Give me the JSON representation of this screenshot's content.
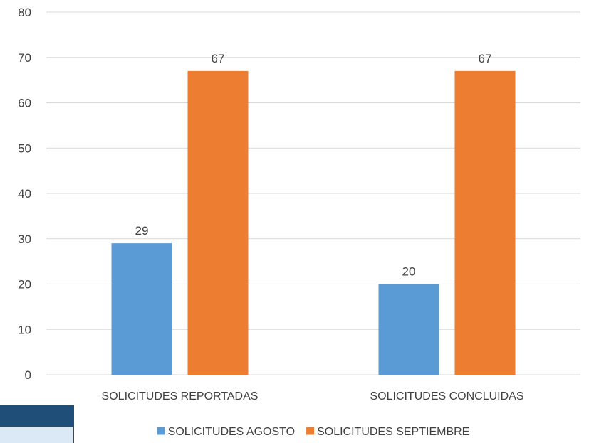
{
  "chart_data": {
    "type": "bar",
    "categories": [
      "SOLICITUDES REPORTADAS",
      "SOLICITUDES CONCLUIDAS"
    ],
    "series": [
      {
        "name": "SOLICITUDES AGOSTO",
        "values": [
          29,
          20
        ],
        "color": "#5b9bd5"
      },
      {
        "name": "SOLICITUDES SEPTIEMBRE",
        "values": [
          67,
          67
        ],
        "color": "#ed7d31"
      }
    ],
    "ylim": [
      0,
      80
    ],
    "yticks": [
      0,
      10,
      20,
      30,
      40,
      50,
      60,
      70,
      80
    ],
    "grid": true,
    "legend": "bottom",
    "data_labels": true
  },
  "colors": {
    "gridline": "#d9d9d9",
    "text": "#404040",
    "corner_dark": "#1f4e79",
    "corner_light": "#dbe9f7"
  }
}
